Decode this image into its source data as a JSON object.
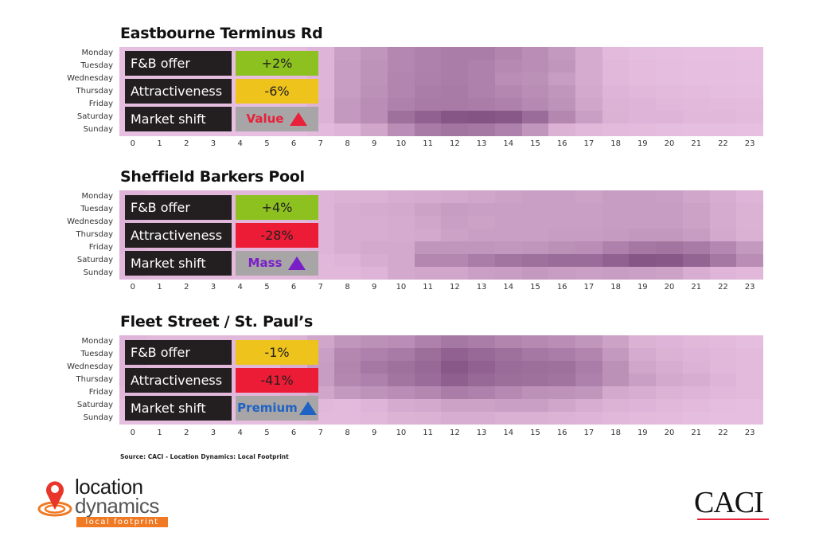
{
  "days": [
    "Monday",
    "Tuesday",
    "Wednesday",
    "Thursday",
    "Friday",
    "Saturday",
    "Sunday"
  ],
  "hours": [
    "0",
    "1",
    "2",
    "3",
    "4",
    "5",
    "6",
    "7",
    "8",
    "9",
    "10",
    "11",
    "12",
    "13",
    "14",
    "15",
    "16",
    "17",
    "18",
    "19",
    "20",
    "21",
    "22",
    "23"
  ],
  "colors": {
    "low": "#ecc4e4",
    "high": "#7a4a7c",
    "positive": "#8cc11f",
    "neutral": "#eec31b",
    "negative": "#ed1c36",
    "shift_bg": "#a7a5a6",
    "label_bg": "#231f20"
  },
  "panels": [
    {
      "title": "Eastbourne Terminus Rd",
      "kpis": [
        {
          "label": "F&B offer",
          "value": "+2%",
          "color": "#8cc11f"
        },
        {
          "label": "Attractiveness",
          "value": "-6%",
          "color": "#eec31b"
        },
        {
          "label": "Market shift",
          "value": "Value",
          "color": "#a7a5a6",
          "text_color": "#e8203a",
          "icon": "triangle-up-icon"
        }
      ]
    },
    {
      "title": "Sheffield Barkers Pool",
      "kpis": [
        {
          "label": "F&B offer",
          "value": "+4%",
          "color": "#8cc11f"
        },
        {
          "label": "Attractiveness",
          "value": "-28%",
          "color": "#ed1c36"
        },
        {
          "label": "Market shift",
          "value": "Mass",
          "color": "#a7a5a6",
          "text_color": "#7a1fc7",
          "icon": "triangle-up-icon"
        }
      ]
    },
    {
      "title": "Fleet Street / St. Paul’s",
      "kpis": [
        {
          "label": "F&B offer",
          "value": "-1%",
          "color": "#eec31b"
        },
        {
          "label": "Attractiveness",
          "value": "-41%",
          "color": "#ed1c36"
        },
        {
          "label": "Market shift",
          "value": "Premium",
          "color": "#a7a5a6",
          "text_color": "#1f62c4",
          "icon": "triangle-up-icon"
        }
      ]
    }
  ],
  "source": "Source: CACI - Location Dynamics: Local Footprint",
  "logos": {
    "location_dynamics": {
      "line1": "location",
      "line2": "dynamics",
      "tag": "local footprint"
    },
    "caci": "CACI"
  },
  "chart_data": [
    {
      "type": "heatmap",
      "title": "Eastbourne Terminus Rd",
      "x": [
        "0",
        "1",
        "2",
        "3",
        "4",
        "5",
        "6",
        "7",
        "8",
        "9",
        "10",
        "11",
        "12",
        "13",
        "14",
        "15",
        "16",
        "17",
        "18",
        "19",
        "20",
        "21",
        "22",
        "23"
      ],
      "y": [
        "Monday",
        "Tuesday",
        "Wednesday",
        "Thursday",
        "Friday",
        "Saturday",
        "Sunday"
      ],
      "values": [
        [
          0.05,
          0.05,
          0.05,
          0.05,
          0.05,
          0.05,
          0.08,
          0.12,
          0.3,
          0.38,
          0.5,
          0.55,
          0.58,
          0.58,
          0.52,
          0.45,
          0.35,
          0.2,
          0.08,
          0.06,
          0.05,
          0.04,
          0.04,
          0.03
        ],
        [
          0.05,
          0.05,
          0.05,
          0.05,
          0.05,
          0.05,
          0.08,
          0.12,
          0.32,
          0.4,
          0.5,
          0.55,
          0.58,
          0.55,
          0.48,
          0.45,
          0.38,
          0.2,
          0.1,
          0.07,
          0.06,
          0.05,
          0.05,
          0.04
        ],
        [
          0.05,
          0.05,
          0.05,
          0.05,
          0.05,
          0.05,
          0.08,
          0.12,
          0.32,
          0.4,
          0.52,
          0.56,
          0.58,
          0.55,
          0.45,
          0.42,
          0.32,
          0.2,
          0.1,
          0.07,
          0.06,
          0.05,
          0.05,
          0.04
        ],
        [
          0.05,
          0.05,
          0.05,
          0.05,
          0.05,
          0.05,
          0.08,
          0.12,
          0.32,
          0.42,
          0.52,
          0.58,
          0.6,
          0.55,
          0.5,
          0.45,
          0.38,
          0.22,
          0.12,
          0.1,
          0.08,
          0.07,
          0.06,
          0.05
        ],
        [
          0.05,
          0.05,
          0.05,
          0.05,
          0.05,
          0.05,
          0.08,
          0.14,
          0.35,
          0.45,
          0.55,
          0.6,
          0.6,
          0.58,
          0.55,
          0.48,
          0.4,
          0.25,
          0.14,
          0.12,
          0.1,
          0.09,
          0.08,
          0.07
        ],
        [
          0.05,
          0.05,
          0.05,
          0.05,
          0.05,
          0.05,
          0.08,
          0.14,
          0.35,
          0.45,
          0.68,
          0.8,
          0.9,
          0.92,
          0.88,
          0.72,
          0.5,
          0.3,
          0.15,
          0.12,
          0.12,
          0.1,
          0.1,
          0.08
        ],
        [
          0.04,
          0.04,
          0.04,
          0.04,
          0.04,
          0.04,
          0.05,
          0.08,
          0.12,
          0.25,
          0.45,
          0.6,
          0.65,
          0.62,
          0.55,
          0.38,
          0.15,
          0.1,
          0.08,
          0.07,
          0.06,
          0.05,
          0.05,
          0.04
        ]
      ],
      "color_scale": [
        "#ecc4e4",
        "#7a4a7c"
      ]
    },
    {
      "type": "heatmap",
      "title": "Sheffield Barkers Pool",
      "x": [
        "0",
        "1",
        "2",
        "3",
        "4",
        "5",
        "6",
        "7",
        "8",
        "9",
        "10",
        "11",
        "12",
        "13",
        "14",
        "15",
        "16",
        "17",
        "18",
        "19",
        "20",
        "21",
        "22",
        "23"
      ],
      "y": [
        "Monday",
        "Tuesday",
        "Wednesday",
        "Thursday",
        "Friday",
        "Saturday",
        "Sunday"
      ],
      "values": [
        [
          0.12,
          0.1,
          0.1,
          0.1,
          0.1,
          0.1,
          0.1,
          0.12,
          0.15,
          0.15,
          0.18,
          0.2,
          0.22,
          0.25,
          0.28,
          0.3,
          0.3,
          0.28,
          0.32,
          0.32,
          0.3,
          0.25,
          0.18,
          0.12
        ],
        [
          0.12,
          0.1,
          0.1,
          0.1,
          0.1,
          0.1,
          0.1,
          0.12,
          0.18,
          0.2,
          0.22,
          0.28,
          0.32,
          0.3,
          0.3,
          0.3,
          0.3,
          0.3,
          0.32,
          0.32,
          0.32,
          0.28,
          0.2,
          0.15
        ],
        [
          0.12,
          0.1,
          0.1,
          0.1,
          0.1,
          0.1,
          0.1,
          0.12,
          0.18,
          0.18,
          0.2,
          0.25,
          0.3,
          0.28,
          0.3,
          0.3,
          0.3,
          0.3,
          0.32,
          0.32,
          0.32,
          0.28,
          0.2,
          0.15
        ],
        [
          0.12,
          0.1,
          0.1,
          0.1,
          0.1,
          0.1,
          0.1,
          0.12,
          0.18,
          0.18,
          0.2,
          0.22,
          0.28,
          0.3,
          0.3,
          0.3,
          0.32,
          0.32,
          0.34,
          0.36,
          0.36,
          0.32,
          0.22,
          0.16
        ],
        [
          0.12,
          0.1,
          0.1,
          0.1,
          0.1,
          0.1,
          0.1,
          0.12,
          0.18,
          0.22,
          0.22,
          0.38,
          0.38,
          0.38,
          0.36,
          0.38,
          0.42,
          0.45,
          0.55,
          0.62,
          0.65,
          0.6,
          0.5,
          0.35
        ],
        [
          0.1,
          0.08,
          0.08,
          0.08,
          0.08,
          0.08,
          0.08,
          0.1,
          0.12,
          0.18,
          0.22,
          0.5,
          0.5,
          0.58,
          0.65,
          0.68,
          0.72,
          0.72,
          0.8,
          0.9,
          0.88,
          0.78,
          0.62,
          0.45
        ],
        [
          0.1,
          0.08,
          0.08,
          0.08,
          0.08,
          0.08,
          0.08,
          0.1,
          0.1,
          0.12,
          0.22,
          0.25,
          0.25,
          0.3,
          0.32,
          0.35,
          0.32,
          0.3,
          0.32,
          0.3,
          0.28,
          0.18,
          0.12,
          0.1
        ]
      ],
      "color_scale": [
        "#ecc4e4",
        "#7a4a7c"
      ]
    },
    {
      "type": "heatmap",
      "title": "Fleet Street / St. Paul’s",
      "x": [
        "0",
        "1",
        "2",
        "3",
        "4",
        "5",
        "6",
        "7",
        "8",
        "9",
        "10",
        "11",
        "12",
        "13",
        "14",
        "15",
        "16",
        "17",
        "18",
        "19",
        "20",
        "21",
        "22",
        "23"
      ],
      "y": [
        "Monday",
        "Tuesday",
        "Wednesday",
        "Thursday",
        "Friday",
        "Saturday",
        "Sunday"
      ],
      "values": [
        [
          0.12,
          0.1,
          0.1,
          0.1,
          0.1,
          0.1,
          0.15,
          0.25,
          0.38,
          0.42,
          0.45,
          0.55,
          0.62,
          0.58,
          0.52,
          0.48,
          0.45,
          0.38,
          0.28,
          0.15,
          0.12,
          0.1,
          0.08,
          0.06
        ],
        [
          0.12,
          0.1,
          0.1,
          0.1,
          0.1,
          0.1,
          0.18,
          0.3,
          0.5,
          0.55,
          0.6,
          0.7,
          0.8,
          0.75,
          0.68,
          0.62,
          0.58,
          0.52,
          0.35,
          0.2,
          0.15,
          0.12,
          0.1,
          0.08
        ],
        [
          0.12,
          0.1,
          0.1,
          0.1,
          0.1,
          0.1,
          0.18,
          0.32,
          0.52,
          0.62,
          0.68,
          0.75,
          0.88,
          0.8,
          0.72,
          0.7,
          0.68,
          0.58,
          0.42,
          0.25,
          0.18,
          0.14,
          0.1,
          0.08
        ],
        [
          0.12,
          0.1,
          0.1,
          0.1,
          0.1,
          0.1,
          0.18,
          0.32,
          0.5,
          0.55,
          0.65,
          0.72,
          0.82,
          0.75,
          0.7,
          0.68,
          0.66,
          0.55,
          0.42,
          0.3,
          0.22,
          0.18,
          0.12,
          0.08
        ],
        [
          0.1,
          0.1,
          0.1,
          0.1,
          0.1,
          0.1,
          0.15,
          0.25,
          0.35,
          0.4,
          0.45,
          0.5,
          0.58,
          0.55,
          0.48,
          0.42,
          0.4,
          0.38,
          0.22,
          0.18,
          0.14,
          0.12,
          0.1,
          0.08
        ],
        [
          0.06,
          0.06,
          0.06,
          0.06,
          0.06,
          0.06,
          0.08,
          0.1,
          0.08,
          0.12,
          0.2,
          0.22,
          0.28,
          0.28,
          0.3,
          0.3,
          0.25,
          0.18,
          0.14,
          0.12,
          0.1,
          0.08,
          0.06,
          0.05
        ],
        [
          0.05,
          0.05,
          0.05,
          0.05,
          0.05,
          0.05,
          0.06,
          0.08,
          0.08,
          0.1,
          0.14,
          0.15,
          0.18,
          0.18,
          0.16,
          0.16,
          0.14,
          0.12,
          0.1,
          0.08,
          0.07,
          0.06,
          0.05,
          0.05
        ]
      ],
      "color_scale": [
        "#ecc4e4",
        "#7a4a7c"
      ]
    }
  ]
}
